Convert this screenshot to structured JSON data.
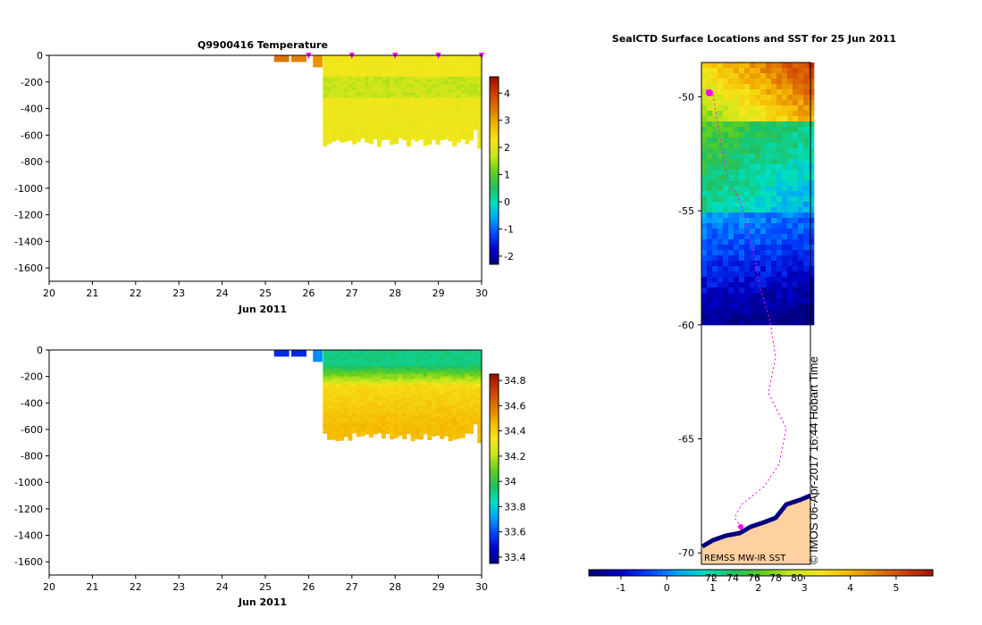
{
  "chart_data": [
    {
      "id": "temperature",
      "type": "heatmap",
      "title": "Q9900416  Temperature",
      "xlabel": "Jun 2011",
      "ylabel": "",
      "xlim": [
        20,
        30
      ],
      "ylim": [
        -1700,
        0
      ],
      "x_ticks": [
        "20",
        "21",
        "22",
        "23",
        "24",
        "25",
        "26",
        "27",
        "28",
        "29",
        "30"
      ],
      "y_ticks": [
        "0",
        "-200",
        "-400",
        "-600",
        "-800",
        "-1000",
        "-1200",
        "-1400",
        "-1600"
      ],
      "surfacing_marker_days": [
        26.0,
        27.0,
        28.0,
        29.0,
        30.0
      ],
      "profiles": [
        {
          "day": 25.2,
          "width": 0.35,
          "max_depth": -50,
          "value": 3.5
        },
        {
          "day": 25.6,
          "width": 0.35,
          "max_depth": -50,
          "value": 3.4
        },
        {
          "day": 26.1,
          "width": 0.22,
          "max_depth": -90,
          "value": 3.2
        }
      ],
      "colorbar": {
        "min": -2.3,
        "max": 4.6,
        "ticks": [
          "4",
          "3",
          "2",
          "1",
          "0",
          "-1",
          "-2"
        ]
      }
    },
    {
      "id": "salinity",
      "type": "heatmap",
      "title": "",
      "xlabel": "Jun 2011",
      "ylabel": "",
      "xlim": [
        20,
        30
      ],
      "ylim": [
        -1700,
        0
      ],
      "x_ticks": [
        "20",
        "21",
        "22",
        "23",
        "24",
        "25",
        "26",
        "27",
        "28",
        "29",
        "30"
      ],
      "y_ticks": [
        "0",
        "-200",
        "-400",
        "-600",
        "-800",
        "-1000",
        "-1200",
        "-1400",
        "-1600"
      ],
      "profiles": [
        {
          "day": 25.2,
          "width": 0.35,
          "max_depth": -50,
          "value": 33.55
        },
        {
          "day": 25.6,
          "width": 0.35,
          "max_depth": -50,
          "value": 33.55
        },
        {
          "day": 26.1,
          "width": 0.22,
          "max_depth": -90,
          "value": 33.7
        }
      ],
      "colorbar": {
        "min": 33.35,
        "max": 34.85,
        "ticks": [
          "34.8",
          "34.6",
          "34.4",
          "34.2",
          "34",
          "33.8",
          "33.6",
          "33.4"
        ]
      }
    },
    {
      "id": "sst-map",
      "type": "heatmap",
      "title": "SealCTD Surface Locations and SST for 25 Jun 2011",
      "ylim": [
        -70.5,
        -48.5
      ],
      "y_ticks": [
        "-50",
        "-55",
        "-60",
        "-65",
        "-70"
      ],
      "source_label": "REMSS MW-IR SST",
      "credit": "© IMOS 06-Apr-2017 16:44 Hobart Time",
      "colorbar": {
        "min": -1.7,
        "max": 5.8,
        "ticks": [
          "-1",
          "0",
          "1",
          "2",
          "3",
          "4",
          "5"
        ],
        "overlap_ticks": [
          "72",
          "74",
          "76",
          "78",
          "80"
        ]
      }
    }
  ],
  "colors": {
    "palette": [
      "#00007f",
      "#0000c4",
      "#0043ff",
      "#00a0ff",
      "#00e0c0",
      "#20c060",
      "#60d020",
      "#c8e61a",
      "#f5e61a",
      "#f5b800",
      "#e07800",
      "#d04000",
      "#a01000"
    ],
    "marker": "#ff00ff",
    "land": "#ffd0a0",
    "track": "#ff00ff"
  }
}
